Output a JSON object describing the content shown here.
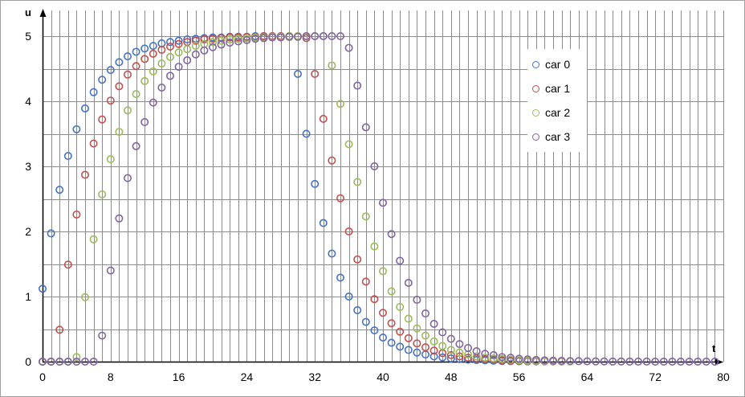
{
  "chart_data": {
    "type": "scatter",
    "xlabel": "t",
    "ylabel": "u",
    "xlim": [
      0,
      80
    ],
    "ylim": [
      0,
      5
    ],
    "x_ticks": [
      0,
      8,
      16,
      24,
      32,
      40,
      48,
      56,
      64,
      72,
      80
    ],
    "y_ticks": [
      0,
      1,
      2,
      3,
      4,
      5
    ],
    "x_minor_step": 1,
    "y_minor_step": 0.5,
    "grid": true,
    "legend_position": "right",
    "series": [
      {
        "name": "car 0",
        "color": "#4472c4",
        "x": [
          0,
          1,
          2,
          3,
          4,
          5,
          6,
          7,
          8,
          9,
          10,
          11,
          12,
          13,
          14,
          15,
          16,
          17,
          18,
          19,
          20,
          21,
          22,
          23,
          24,
          25,
          26,
          27,
          28,
          29,
          30,
          31,
          32,
          33,
          34,
          35,
          36,
          37,
          38,
          39,
          40,
          41,
          42,
          43,
          44,
          45,
          46,
          47,
          48,
          49,
          50,
          51,
          52,
          53,
          54,
          55,
          56,
          57,
          58
        ],
        "y": [
          1.12,
          1.97,
          2.64,
          3.16,
          3.57,
          3.89,
          4.14,
          4.33,
          4.48,
          4.6,
          4.69,
          4.76,
          4.81,
          4.85,
          4.89,
          4.91,
          4.93,
          4.95,
          4.96,
          4.97,
          4.98,
          4.98,
          4.99,
          4.99,
          4.99,
          5.0,
          5.0,
          5.0,
          5.0,
          4.99,
          4.42,
          3.5,
          2.73,
          2.13,
          1.66,
          1.29,
          1.0,
          0.79,
          0.61,
          0.48,
          0.37,
          0.29,
          0.23,
          0.18,
          0.14,
          0.11,
          0.08,
          0.065,
          0.05,
          0.04,
          0.03,
          0.025,
          0.02,
          0.015,
          0.01,
          0.008,
          0.006,
          0.004,
          0.003
        ]
      },
      {
        "name": "car 1",
        "color": "#c0504d",
        "x": [
          0,
          1,
          2,
          3,
          4,
          5,
          6,
          7,
          8,
          9,
          10,
          11,
          12,
          13,
          14,
          15,
          16,
          17,
          18,
          19,
          20,
          21,
          22,
          23,
          24,
          25,
          26,
          27,
          28,
          29,
          30,
          31,
          32,
          33,
          34,
          35,
          36,
          37,
          38,
          39,
          40,
          41,
          42,
          43,
          44,
          45,
          46,
          47,
          48,
          49,
          50,
          51,
          52,
          53,
          54,
          55,
          56,
          57,
          58,
          59,
          60,
          61
        ],
        "y": [
          0,
          0,
          0.49,
          1.49,
          2.26,
          2.87,
          3.35,
          3.72,
          4.01,
          4.23,
          4.41,
          4.54,
          4.65,
          4.73,
          4.79,
          4.84,
          4.88,
          4.91,
          4.93,
          4.95,
          4.96,
          4.97,
          4.98,
          4.98,
          4.99,
          4.99,
          5.0,
          5.0,
          5.0,
          5.0,
          5.0,
          4.97,
          4.42,
          3.73,
          3.09,
          2.51,
          2.0,
          1.57,
          1.23,
          0.96,
          0.75,
          0.59,
          0.46,
          0.36,
          0.28,
          0.22,
          0.17,
          0.13,
          0.1,
          0.08,
          0.06,
          0.05,
          0.04,
          0.03,
          0.02,
          0.015,
          0.01,
          0.008,
          0.006,
          0.004,
          0.003,
          0.002
        ]
      },
      {
        "name": "car 2",
        "color": "#9bbb59",
        "x": [
          0,
          1,
          2,
          3,
          4,
          5,
          6,
          7,
          8,
          9,
          10,
          11,
          12,
          13,
          14,
          15,
          16,
          17,
          18,
          19,
          20,
          21,
          22,
          23,
          24,
          25,
          26,
          27,
          28,
          29,
          30,
          31,
          32,
          33,
          34,
          35,
          36,
          37,
          38,
          39,
          40,
          41,
          42,
          43,
          44,
          45,
          46,
          47,
          48,
          49,
          50,
          51,
          52,
          53,
          54,
          55,
          56,
          57,
          58,
          59,
          60,
          61,
          62
        ],
        "y": [
          0,
          0,
          0,
          0,
          0.07,
          0.99,
          1.88,
          2.57,
          3.11,
          3.53,
          3.86,
          4.11,
          4.31,
          4.46,
          4.58,
          4.68,
          4.75,
          4.8,
          4.85,
          4.88,
          4.91,
          4.93,
          4.95,
          4.96,
          4.97,
          4.98,
          4.98,
          4.99,
          4.99,
          5.0,
          5.0,
          5.0,
          5.0,
          5.0,
          4.55,
          3.96,
          3.34,
          2.76,
          2.23,
          1.77,
          1.39,
          1.08,
          0.84,
          0.66,
          0.51,
          0.4,
          0.31,
          0.24,
          0.18,
          0.14,
          0.11,
          0.08,
          0.06,
          0.05,
          0.04,
          0.03,
          0.02,
          0.015,
          0.01,
          0.008,
          0.006,
          0.004,
          0.003
        ]
      },
      {
        "name": "car 3",
        "color": "#8064a2",
        "x": [
          0,
          1,
          2,
          3,
          4,
          5,
          6,
          7,
          8,
          9,
          10,
          11,
          12,
          13,
          14,
          15,
          16,
          17,
          18,
          19,
          20,
          21,
          22,
          23,
          24,
          25,
          26,
          27,
          28,
          29,
          30,
          31,
          32,
          33,
          34,
          35,
          36,
          37,
          38,
          39,
          40,
          41,
          42,
          43,
          44,
          45,
          46,
          47,
          48,
          49,
          50,
          51,
          52,
          53,
          54,
          55,
          56,
          57,
          58,
          59,
          60,
          61,
          62,
          63,
          64,
          65,
          66,
          67,
          68,
          69,
          70,
          71,
          72,
          73,
          74,
          75,
          76,
          77,
          78,
          79
        ],
        "y": [
          0,
          0,
          0,
          0,
          0,
          0,
          0,
          0.4,
          1.4,
          2.2,
          2.82,
          3.31,
          3.68,
          3.98,
          4.21,
          4.39,
          4.53,
          4.63,
          4.72,
          4.78,
          4.83,
          4.87,
          4.9,
          4.92,
          4.94,
          4.96,
          4.97,
          4.98,
          4.98,
          4.99,
          4.99,
          5.0,
          5.0,
          5.0,
          5.0,
          5.0,
          4.82,
          4.24,
          3.6,
          3.0,
          2.44,
          1.96,
          1.55,
          1.21,
          0.95,
          0.74,
          0.58,
          0.45,
          0.35,
          0.27,
          0.21,
          0.16,
          0.12,
          0.1,
          0.07,
          0.06,
          0.045,
          0.035,
          0.027,
          0.02,
          0.015,
          0.012,
          0.009,
          0.007,
          0.005,
          0.004,
          0.003,
          0.002,
          0.002,
          0.001,
          0.001,
          0.001,
          0.0,
          0.0,
          0.0,
          0.0,
          0.0,
          0.0,
          0.0,
          0.0
        ]
      }
    ]
  }
}
